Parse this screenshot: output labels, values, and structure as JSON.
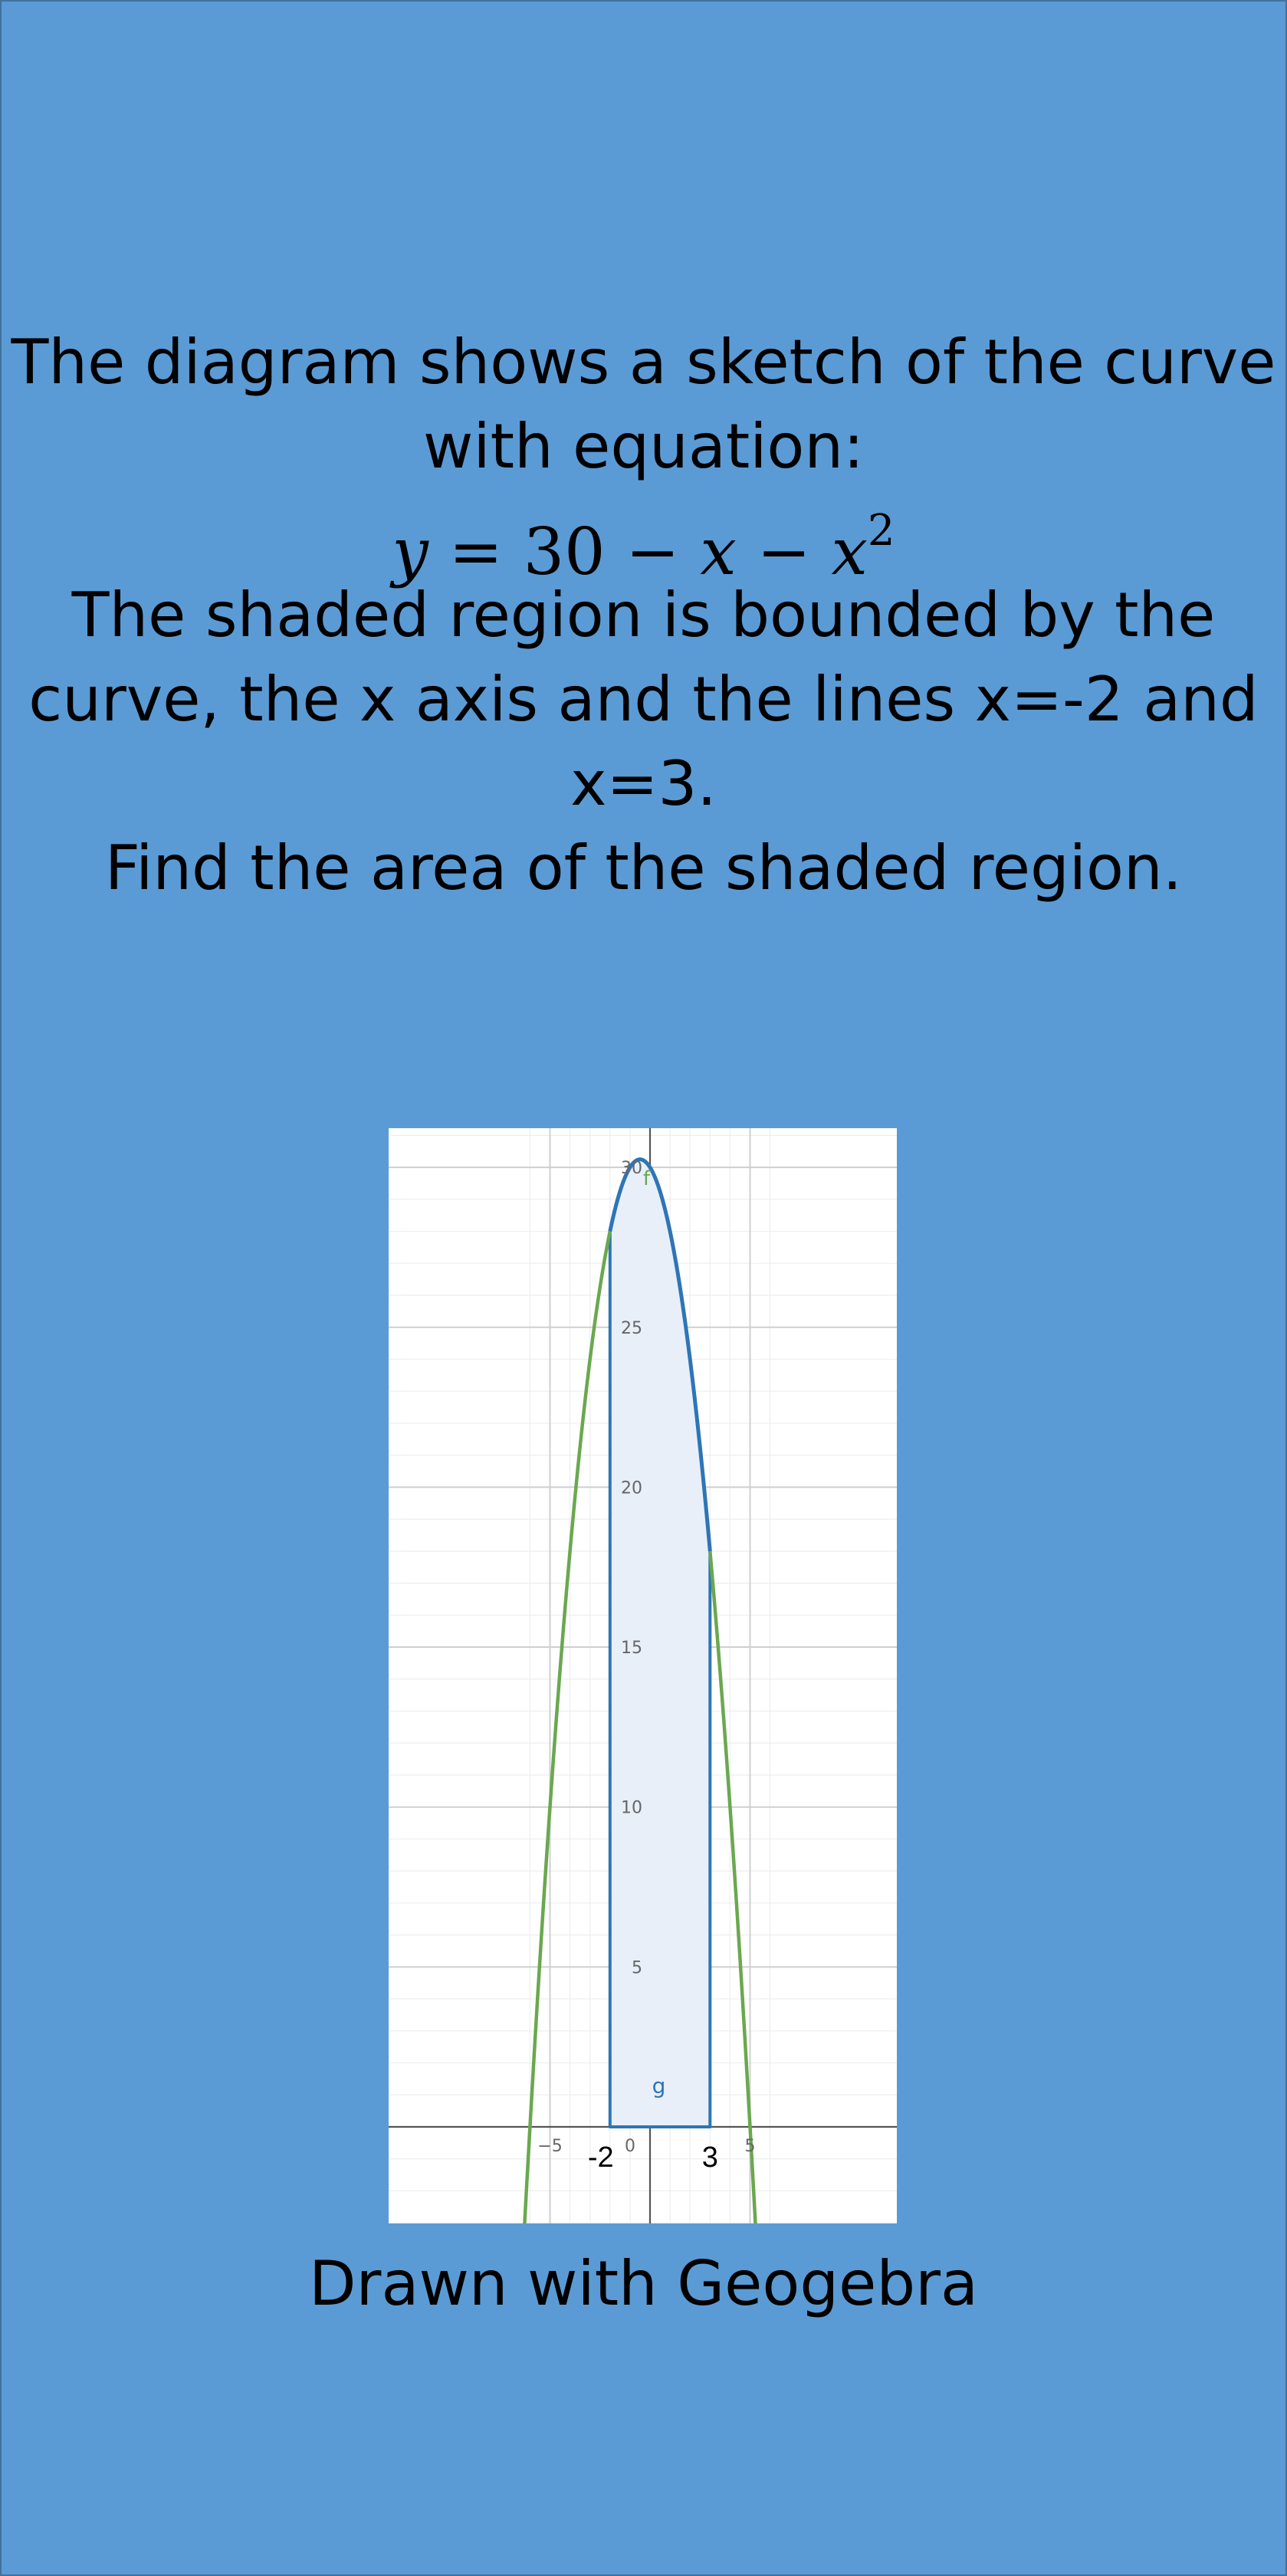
{
  "problem": {
    "line1": "The diagram shows a sketch of the curve",
    "line2": "with equation:",
    "equation": {
      "lhs": "y",
      "eq": " = ",
      "c": "30",
      "minus1": " − ",
      "x": "x",
      "minus2": " − ",
      "x2": "x",
      "exp": "2"
    },
    "line3": "The shaded region is bounded by the",
    "line4": "curve, the x axis and the lines x=-2 and",
    "line5": "x=3.",
    "line6": "Find the area of the shaded region."
  },
  "caption": "Drawn with Geogebra",
  "colors": {
    "background": "#5B9BD5",
    "curve_full": "#6AA84F",
    "curve_bounded": "#2E75B6",
    "shade_fill": "#E8EFF9",
    "graph_bg": "#FFFFFF"
  },
  "chart_data": {
    "type": "area",
    "function": "30 - x - x^2",
    "curve_label": "f",
    "region_label": "g",
    "region_bounds": [
      -2,
      3
    ],
    "xlim": [
      -6.5,
      6.5
    ],
    "ylim": [
      -3,
      30.5
    ],
    "x_tick_labels": [
      {
        "x": -5,
        "label": "−5"
      },
      {
        "x": 0,
        "label": "0"
      },
      {
        "x": 5,
        "label": "5"
      }
    ],
    "y_tick_labels": [
      {
        "y": 5,
        "label": "5"
      },
      {
        "y": 10,
        "label": "10"
      },
      {
        "y": 15,
        "label": "15"
      },
      {
        "y": 20,
        "label": "20"
      },
      {
        "y": 25,
        "label": "25"
      },
      {
        "y": 30,
        "label": "30"
      }
    ],
    "annotations": [
      {
        "x": -2,
        "label": "-2"
      },
      {
        "x": 3,
        "label": "3"
      }
    ],
    "grid": true
  }
}
